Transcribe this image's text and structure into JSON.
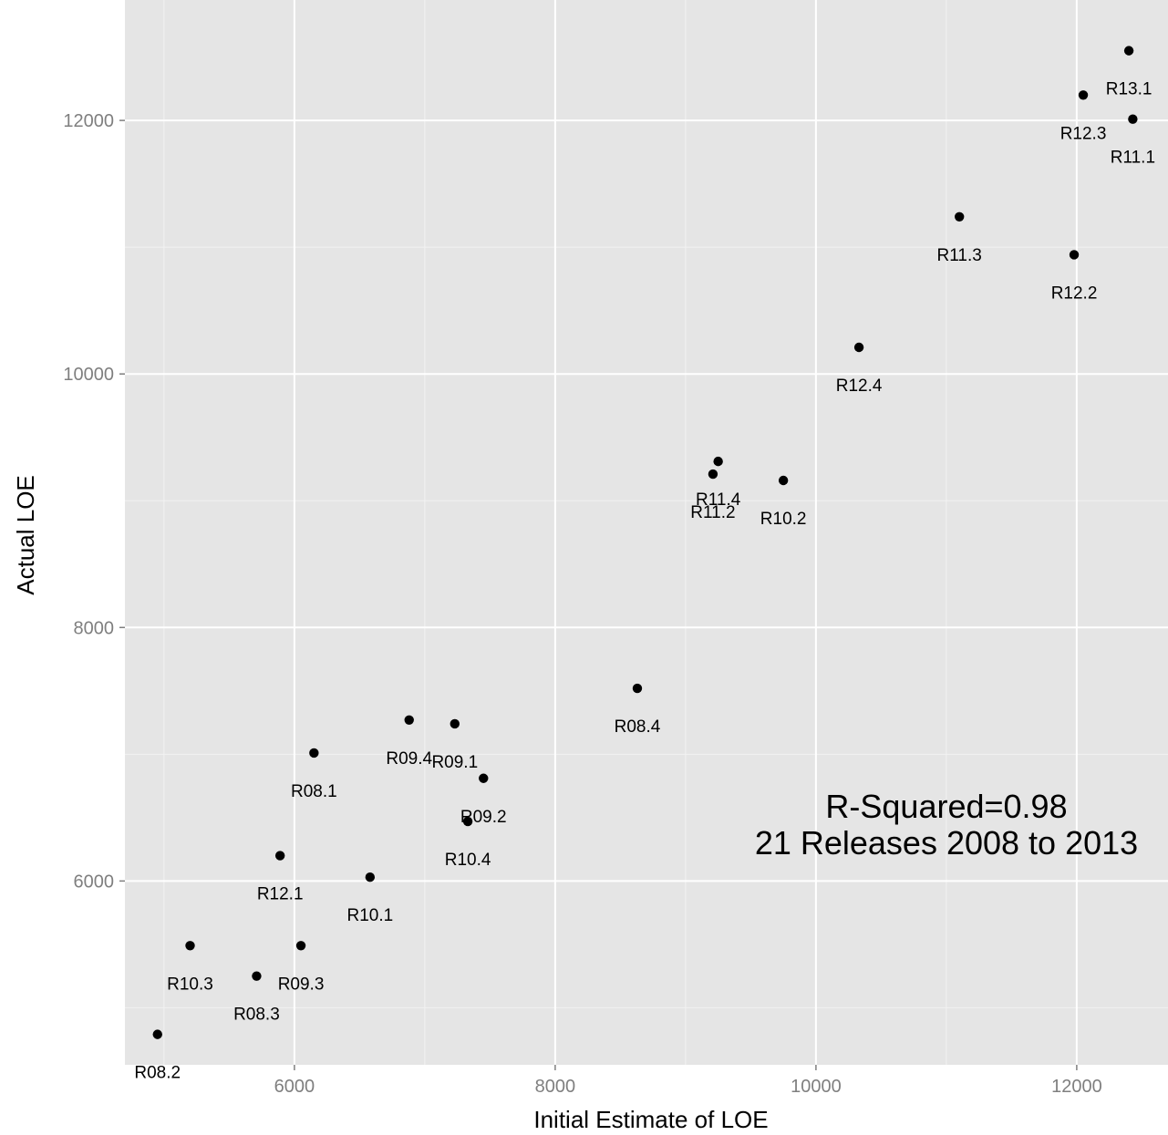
{
  "chart_data": {
    "type": "scatter",
    "xlabel": "Initial Estimate of LOE",
    "ylabel": "Actual LOE",
    "xlim": [
      4700,
      12700
    ],
    "ylim": [
      4550,
      12950
    ],
    "x_ticks": [
      6000,
      8000,
      10000,
      12000
    ],
    "y_ticks": [
      6000,
      8000,
      10000,
      12000
    ],
    "x_tick_labels": [
      "6000",
      "8000",
      "10000",
      "12000"
    ],
    "y_tick_labels": [
      "6000",
      "8000",
      "10000",
      "12000"
    ],
    "grid": true,
    "background": "#e5e5e5",
    "grid_color": "#ffffff",
    "point_color": "#000000",
    "annotation": [
      "R-Squared=0.98",
      "21 Releases 2008 to 2013"
    ],
    "points": [
      {
        "label": "R13.1",
        "x": 12400,
        "y": 12550
      },
      {
        "label": "R12.3",
        "x": 12050,
        "y": 12200
      },
      {
        "label": "R11.1",
        "x": 12430,
        "y": 12010
      },
      {
        "label": "R11.3",
        "x": 11100,
        "y": 11240
      },
      {
        "label": "R12.2",
        "x": 11980,
        "y": 10940
      },
      {
        "label": "R12.4",
        "x": 10330,
        "y": 10210
      },
      {
        "label": "R11.4",
        "x": 9250,
        "y": 9310
      },
      {
        "label": "R11.2",
        "x": 9210,
        "y": 9210
      },
      {
        "label": "R10.2",
        "x": 9750,
        "y": 9160
      },
      {
        "label": "R08.4",
        "x": 8630,
        "y": 7520
      },
      {
        "label": "R09.4",
        "x": 6880,
        "y": 7270
      },
      {
        "label": "R09.1",
        "x": 7230,
        "y": 7240
      },
      {
        "label": "R08.1",
        "x": 6150,
        "y": 7010
      },
      {
        "label": "R09.2",
        "x": 7450,
        "y": 6810
      },
      {
        "label": "R10.4",
        "x": 7330,
        "y": 6470
      },
      {
        "label": "R12.1",
        "x": 5890,
        "y": 6200
      },
      {
        "label": "R10.1",
        "x": 6580,
        "y": 6030
      },
      {
        "label": "R10.3",
        "x": 5200,
        "y": 5490
      },
      {
        "label": "R09.3",
        "x": 6050,
        "y": 5490
      },
      {
        "label": "R08.3",
        "x": 5710,
        "y": 5250
      },
      {
        "label": "R08.2",
        "x": 4950,
        "y": 4790
      }
    ]
  }
}
